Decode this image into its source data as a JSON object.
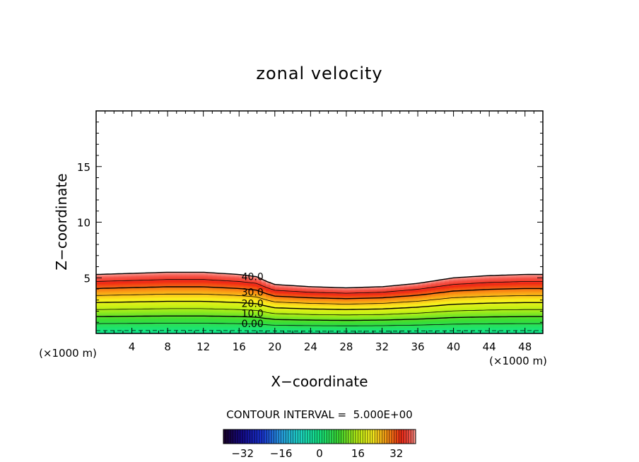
{
  "chart_data": {
    "type": "contour",
    "title": "zonal velocity",
    "xlabel": "X−coordinate",
    "ylabel": "Z−coordinate",
    "x_unit_left": "(×1000 m)",
    "x_unit_right": "(×1000 m)",
    "xlim": [
      0,
      50
    ],
    "ylim": [
      0,
      20
    ],
    "x_ticks": [
      4,
      8,
      12,
      16,
      20,
      24,
      28,
      32,
      36,
      40,
      44,
      48
    ],
    "y_ticks": [
      5,
      10,
      15
    ],
    "contour_labels": [
      {
        "text": "40.0",
        "x": 17.5,
        "y": 5.1
      },
      {
        "text": "30.0",
        "x": 17.5,
        "y": 3.7
      },
      {
        "text": "20.0",
        "x": 17.5,
        "y": 2.7
      },
      {
        "text": "10.0",
        "x": 17.5,
        "y": 1.8
      },
      {
        "text": "0.00",
        "x": 17.5,
        "y": 0.9
      }
    ],
    "profile": {
      "x": [
        0,
        4,
        8,
        12,
        14,
        16,
        18,
        19,
        20,
        24,
        28,
        32,
        36,
        40,
        44,
        48,
        50
      ],
      "top": [
        5.3,
        5.4,
        5.5,
        5.5,
        5.4,
        5.3,
        5.1,
        4.7,
        4.4,
        4.2,
        4.1,
        4.2,
        4.5,
        5.0,
        5.2,
        5.3,
        5.3
      ]
    },
    "contour_interval_text": "CONTOUR INTERVAL =  5.000E+00",
    "colorbar": {
      "min": -40,
      "max": 40,
      "ticks": [
        -32,
        -16,
        0,
        16,
        32
      ],
      "tick_labels": [
        "−32",
        "−16",
        "0",
        "16",
        "32"
      ]
    }
  }
}
